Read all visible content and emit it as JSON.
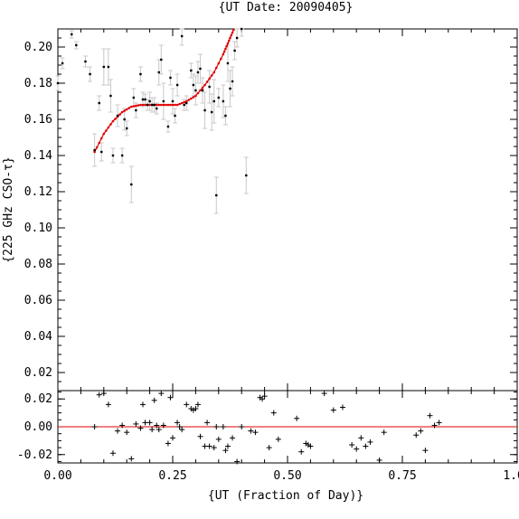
{
  "chart_data": [
    {
      "type": "scatter",
      "title": "{UT Date: 20090405}",
      "ylabel": "{225 GHz CSO-τ}",
      "xlim": [
        0.0,
        1.0
      ],
      "ylim": [
        0.01,
        0.21
      ],
      "ytick_labels": [
        "0.02",
        "0.04",
        "0.06",
        "0.08",
        "0.10",
        "0.12",
        "0.14",
        "0.16",
        "0.18",
        "0.20"
      ],
      "series": [
        {
          "x": [
            0.0,
            0.01,
            0.03,
            0.04,
            0.06,
            0.07,
            0.08,
            0.09,
            0.095,
            0.1,
            0.11,
            0.115,
            0.12,
            0.13,
            0.14,
            0.145,
            0.15,
            0.16,
            0.165,
            0.17,
            0.18,
            0.185,
            0.19,
            0.195,
            0.2,
            0.205,
            0.21,
            0.215,
            0.22,
            0.225,
            0.23,
            0.24,
            0.245,
            0.25,
            0.255,
            0.26,
            0.27,
            0.275,
            0.28,
            0.29,
            0.295,
            0.3,
            0.305,
            0.31,
            0.315,
            0.32,
            0.33,
            0.335,
            0.34,
            0.345,
            0.35,
            0.36,
            0.365,
            0.37,
            0.375,
            0.38,
            0.385,
            0.39,
            0.4,
            0.41
          ],
          "y": [
            0.18,
            0.191,
            0.207,
            0.201,
            0.192,
            0.185,
            0.143,
            0.169,
            0.142,
            0.189,
            0.189,
            0.173,
            0.14,
            0.162,
            0.14,
            0.16,
            0.155,
            0.124,
            0.172,
            0.165,
            0.185,
            0.171,
            0.171,
            0.168,
            0.17,
            0.168,
            0.168,
            0.166,
            0.186,
            0.193,
            0.17,
            0.156,
            0.183,
            0.17,
            0.162,
            0.179,
            0.206,
            0.168,
            0.169,
            0.187,
            0.179,
            0.176,
            0.186,
            0.188,
            0.176,
            0.165,
            0.178,
            0.164,
            0.17,
            0.118,
            0.172,
            0.17,
            0.162,
            0.191,
            0.177,
            0.181,
            0.198,
            0.205,
            0.21,
            0.129
          ],
          "yerr": [
            0.004,
            0.003,
            0.002,
            0.002,
            0.003,
            0.004,
            0.009,
            0.004,
            0.005,
            0.01,
            0.01,
            0.009,
            0.004,
            0.006,
            0.004,
            0.006,
            0.004,
            0.01,
            0.005,
            0.004,
            0.004,
            0.004,
            0.003,
            0.003,
            0.005,
            0.004,
            0.004,
            0.003,
            0.007,
            0.008,
            0.01,
            0.003,
            0.004,
            0.007,
            0.004,
            0.006,
            0.005,
            0.003,
            0.004,
            0.004,
            0.006,
            0.008,
            0.006,
            0.008,
            0.007,
            0.01,
            0.009,
            0.01,
            0.012,
            0.01,
            0.005,
            0.009,
            0.005,
            0.01,
            0.01,
            0.008,
            0.005,
            0.005,
            0.004,
            0.01
          ]
        },
        {
          "type": "line",
          "x": [
            0.08,
            0.1,
            0.12,
            0.14,
            0.16,
            0.18,
            0.2,
            0.22,
            0.24,
            0.26,
            0.28,
            0.3,
            0.32,
            0.34,
            0.36,
            0.37,
            0.38,
            0.39
          ],
          "y": [
            0.142,
            0.152,
            0.159,
            0.164,
            0.167,
            0.168,
            0.168,
            0.168,
            0.168,
            0.168,
            0.17,
            0.173,
            0.179,
            0.186,
            0.196,
            0.202,
            0.208,
            0.214
          ]
        }
      ]
    },
    {
      "type": "scatter",
      "xlabel": "{UT (Fraction of Day)}",
      "xlim": [
        0.0,
        1.0
      ],
      "ylim": [
        -0.026,
        0.026
      ],
      "xtick_labels": [
        "0.00",
        "0.25",
        "0.50",
        "0.75",
        "1.00"
      ],
      "ytick_labels": [
        "-0.02",
        "0.00",
        "0.02"
      ],
      "series": [
        {
          "x": [
            0.08,
            0.09,
            0.1,
            0.11,
            0.12,
            0.13,
            0.14,
            0.15,
            0.16,
            0.17,
            0.18,
            0.185,
            0.19,
            0.2,
            0.205,
            0.21,
            0.215,
            0.22,
            0.225,
            0.23,
            0.24,
            0.245,
            0.25,
            0.26,
            0.265,
            0.27,
            0.28,
            0.29,
            0.295,
            0.3,
            0.305,
            0.31,
            0.32,
            0.325,
            0.33,
            0.34,
            0.345,
            0.35,
            0.36,
            0.365,
            0.37,
            0.38,
            0.39,
            0.4,
            0.42,
            0.43,
            0.44,
            0.445,
            0.45,
            0.46,
            0.47,
            0.48,
            0.52,
            0.53,
            0.54,
            0.545,
            0.55,
            0.58,
            0.6,
            0.62,
            0.64,
            0.65,
            0.66,
            0.67,
            0.68,
            0.7,
            0.71,
            0.78,
            0.79,
            0.8,
            0.81,
            0.82,
            0.83
          ],
          "y": [
            0.0,
            0.023,
            0.024,
            0.016,
            -0.019,
            -0.003,
            0.001,
            -0.004,
            -0.023,
            0.002,
            -0.001,
            0.016,
            0.003,
            0.003,
            -0.002,
            0.019,
            0.001,
            -0.002,
            0.024,
            0.001,
            -0.012,
            0.021,
            -0.008,
            0.003,
            0.0,
            -0.002,
            0.016,
            0.013,
            0.012,
            0.013,
            0.016,
            -0.007,
            -0.014,
            0.003,
            -0.014,
            -0.015,
            0.0,
            -0.009,
            0.0,
            -0.017,
            -0.014,
            -0.008,
            -0.025,
            0.0,
            -0.003,
            -0.004,
            0.021,
            0.02,
            0.022,
            -0.015,
            0.01,
            -0.009,
            0.006,
            -0.018,
            -0.012,
            -0.013,
            -0.014,
            0.024,
            0.012,
            0.014,
            -0.013,
            -0.016,
            -0.008,
            -0.014,
            -0.011,
            -0.024,
            -0.004,
            -0.006,
            -0.003,
            -0.017,
            0.008,
            0.001,
            0.003
          ]
        },
        {
          "type": "line",
          "x": [
            0.0,
            1.0
          ],
          "y": [
            0.0,
            0.0
          ]
        }
      ]
    }
  ]
}
